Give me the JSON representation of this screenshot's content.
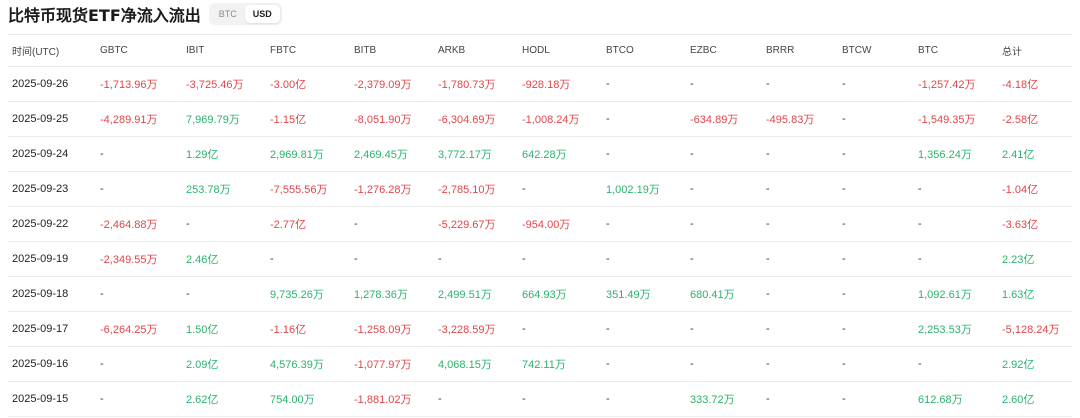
{
  "header": {
    "title": "比特币现货ETF净流入流出",
    "toggle": [
      "BTC",
      "USD"
    ],
    "active": "USD"
  },
  "colors": {
    "negative": "#e0464a",
    "positive": "#2bb26e"
  },
  "columns": [
    "时间(UTC)",
    "GBTC",
    "IBIT",
    "FBTC",
    "BITB",
    "ARKB",
    "HODL",
    "BTCO",
    "EZBC",
    "BRRR",
    "BTCW",
    "BTC",
    "总计"
  ],
  "rows": [
    [
      "2025-09-26",
      "-1,713.96万",
      "-3,725.46万",
      "-3.00亿",
      "-2,379.09万",
      "-1,780.73万",
      "-928.18万",
      "-",
      "-",
      "-",
      "-",
      "-1,257.42万",
      "-4.18亿"
    ],
    [
      "2025-09-25",
      "-4,289.91万",
      "7,969.79万",
      "-1.15亿",
      "-8,051.90万",
      "-6,304.69万",
      "-1,008.24万",
      "-",
      "-634.89万",
      "-495.83万",
      "-",
      "-1,549.35万",
      "-2.58亿"
    ],
    [
      "2025-09-24",
      "-",
      "1.29亿",
      "2,969.81万",
      "2,469.45万",
      "3,772.17万",
      "642.28万",
      "-",
      "-",
      "-",
      "-",
      "1,356.24万",
      "2.41亿"
    ],
    [
      "2025-09-23",
      "-",
      "253.78万",
      "-7,555.56万",
      "-1,276.28万",
      "-2,785.10万",
      "-",
      "1,002.19万",
      "-",
      "-",
      "-",
      "-",
      "-1.04亿"
    ],
    [
      "2025-09-22",
      "-2,464.88万",
      "-",
      "-2.77亿",
      "-",
      "-5,229.67万",
      "-954.00万",
      "-",
      "-",
      "-",
      "-",
      "-",
      "-3.63亿"
    ],
    [
      "2025-09-19",
      "-2,349.55万",
      "2.46亿",
      "-",
      "-",
      "-",
      "-",
      "-",
      "-",
      "-",
      "-",
      "-",
      "2.23亿"
    ],
    [
      "2025-09-18",
      "-",
      "-",
      "9,735.26万",
      "1,278.36万",
      "2,499.51万",
      "664.93万",
      "351.49万",
      "680.41万",
      "-",
      "-",
      "1,092.61万",
      "1.63亿"
    ],
    [
      "2025-09-17",
      "-6,264.25万",
      "1.50亿",
      "-1.16亿",
      "-1,258.09万",
      "-3,228.59万",
      "-",
      "-",
      "-",
      "-",
      "-",
      "2,253.53万",
      "-5,128.24万"
    ],
    [
      "2025-09-16",
      "-",
      "2.09亿",
      "4,576.39万",
      "-1,077.97万",
      "4,068.15万",
      "742.11万",
      "-",
      "-",
      "-",
      "-",
      "-",
      "2.92亿"
    ],
    [
      "2025-09-15",
      "-",
      "2.62亿",
      "754.00万",
      "-1,881.02万",
      "-",
      "-",
      "-",
      "333.72万",
      "-",
      "-",
      "612.68万",
      "2.60亿"
    ]
  ]
}
